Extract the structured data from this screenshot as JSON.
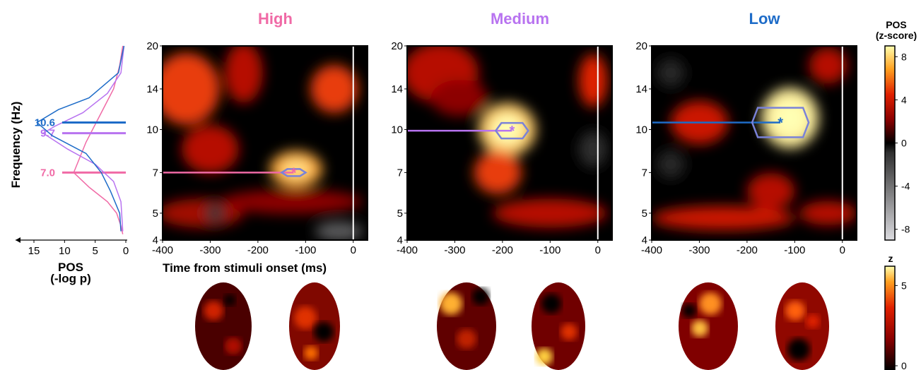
{
  "chart_data": [
    {
      "type": "line",
      "xlabel": "POS\n(-log p)",
      "ylabel": "Frequency (Hz)",
      "x_ticks": [
        15,
        10,
        5,
        0
      ],
      "y_ticks": [
        4,
        5,
        7,
        10,
        14,
        20
      ],
      "xlim": [
        18,
        0
      ],
      "ylim": [
        4,
        20
      ],
      "y_scale": "log",
      "series": [
        {
          "name": "High",
          "color": "#f06aa6",
          "x": [
            0.5,
            1.0,
            2.0,
            4.0,
            6.5,
            8.5,
            6.0,
            3.0,
            1.5,
            0.8,
            0.5
          ],
          "y": [
            20,
            17,
            14,
            11.5,
            9.0,
            7.0,
            6.2,
            5.5,
            5.0,
            4.5,
            4.2
          ],
          "peak": 7.0,
          "peak_label": "7.0"
        },
        {
          "name": "Medium",
          "color": "#b873f0",
          "x": [
            0.3,
            0.8,
            3.0,
            7.0,
            11.5,
            13.5,
            9.5,
            5.0,
            2.0,
            0.8,
            0.5
          ],
          "y": [
            20,
            16,
            13.5,
            11.5,
            10.3,
            9.7,
            8.5,
            7.5,
            6.5,
            5.5,
            4.3
          ],
          "peak": 9.7,
          "peak_label": "9.7"
        },
        {
          "name": "Low",
          "color": "#1e6cc8",
          "x": [
            0.3,
            1.2,
            6.0,
            11.0,
            14.5,
            12.0,
            6.5,
            4.0,
            2.5,
            1.0,
            0.8
          ],
          "y": [
            20,
            16,
            13,
            11.8,
            10.6,
            9.5,
            8.2,
            7.0,
            6.0,
            5.0,
            4.3
          ],
          "peak": 10.6,
          "peak_label": "10.6"
        }
      ]
    },
    {
      "type": "heatmap",
      "panels": [
        {
          "title": "High",
          "title_color": "#f06aa6",
          "blobs": [
            {
              "t": -350,
              "f": 14,
              "rt": 70,
              "rf": 0.3,
              "z": 4.5
            },
            {
              "t": -230,
              "f": 16,
              "rt": 40,
              "rf": 0.25,
              "z": 3.0
            },
            {
              "t": -40,
              "f": 14,
              "rt": 50,
              "rf": 0.2,
              "z": 4.5
            },
            {
              "t": -120,
              "f": 7.2,
              "rt": 55,
              "rf": 0.15,
              "z": 6.5
            },
            {
              "t": -300,
              "f": 8.5,
              "rt": 60,
              "rf": 0.2,
              "z": 3.0
            },
            {
              "t": -320,
              "f": 5.0,
              "rt": 90,
              "rf": 0.12,
              "z": 2.5
            },
            {
              "t": -130,
              "f": 5.5,
              "rt": 150,
              "rf": 0.1,
              "z": 2.0
            },
            {
              "t": -290,
              "f": 5.0,
              "rt": 20,
              "rf": 0.08,
              "z": -3.5
            },
            {
              "t": -30,
              "f": 4.3,
              "rt": 50,
              "rf": 0.08,
              "z": -5.0
            }
          ],
          "peak": {
            "t": -125,
            "f": 7.0
          }
        },
        {
          "title": "Medium",
          "title_color": "#b873f0",
          "blobs": [
            {
              "t": -330,
              "f": 16,
              "rt": 80,
              "rf": 0.25,
              "z": 3.0
            },
            {
              "t": -190,
              "f": 10,
              "rt": 60,
              "rf": 0.22,
              "z": 7.5
            },
            {
              "t": -210,
              "f": 7.0,
              "rt": 50,
              "rf": 0.18,
              "z": 4.5
            },
            {
              "t": -100,
              "f": 5.0,
              "rt": 120,
              "rf": 0.12,
              "z": 3.0
            },
            {
              "t": -10,
              "f": 15,
              "rt": 30,
              "rf": 0.22,
              "z": 4.0
            },
            {
              "t": -290,
              "f": 13,
              "rt": 60,
              "rf": 0.15,
              "z": 2.0
            },
            {
              "t": -10,
              "f": 8.5,
              "rt": 30,
              "rf": 0.15,
              "z": -3.0
            }
          ],
          "peak": {
            "t": -180,
            "f": 9.9
          }
        },
        {
          "title": "Low",
          "title_color": "#1e6cc8",
          "blobs": [
            {
              "t": -110,
              "f": 11,
              "rt": 60,
              "rf": 0.25,
              "z": 8.5
            },
            {
              "t": -300,
              "f": 10.6,
              "rt": 60,
              "rf": 0.18,
              "z": 3.5
            },
            {
              "t": -150,
              "f": 6.0,
              "rt": 50,
              "rf": 0.15,
              "z": 3.0
            },
            {
              "t": -250,
              "f": 4.8,
              "rt": 150,
              "rf": 0.1,
              "z": 3.5
            },
            {
              "t": -30,
              "f": 5.0,
              "rt": 60,
              "rf": 0.1,
              "z": 3.0
            },
            {
              "t": -30,
              "f": 17,
              "rt": 40,
              "rf": 0.15,
              "z": 3.0
            },
            {
              "t": -360,
              "f": 16,
              "rt": 30,
              "rf": 0.12,
              "z": -2.5
            },
            {
              "t": -360,
              "f": 7.5,
              "rt": 30,
              "rf": 0.12,
              "z": -2.5
            }
          ],
          "peak": {
            "t": -130,
            "f": 10.6
          }
        }
      ],
      "xlabel": "Time from stimuli onset (ms)",
      "x_ticks": [
        -400,
        -300,
        -200,
        -100,
        0
      ],
      "y_ticks": [
        4,
        5,
        7,
        10,
        14,
        20
      ],
      "xlim": [
        -400,
        30
      ],
      "ylim": [
        4,
        20
      ],
      "y_scale": "log",
      "colorbar": {
        "label": "POS\n(z-score)",
        "ticks": [
          8,
          4,
          0,
          -4,
          -8
        ],
        "range": [
          -9,
          9
        ]
      }
    },
    {
      "type": "heatmap",
      "description_colorbar": {
        "label": "z",
        "ticks": [
          5,
          0
        ],
        "range": [
          0,
          5.5
        ]
      }
    }
  ]
}
